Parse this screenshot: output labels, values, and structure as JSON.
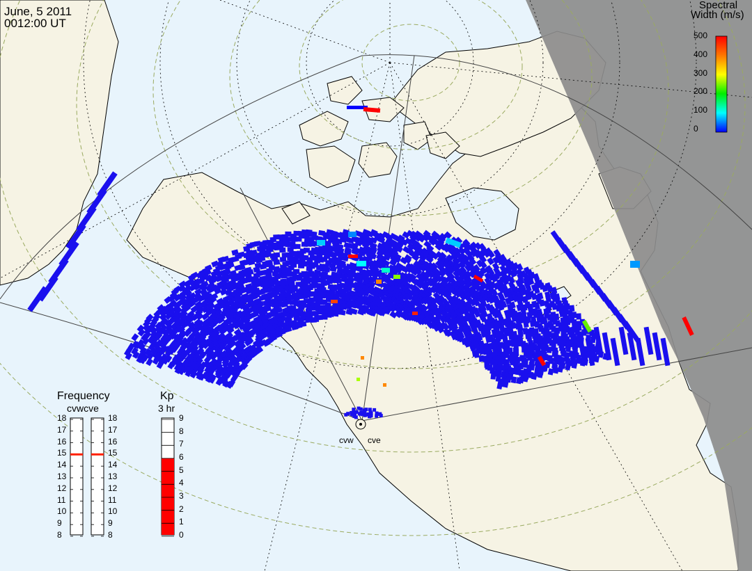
{
  "header": {
    "date": "June, 5 2011",
    "time": "0012:00 UT"
  },
  "colorbar": {
    "title_line1": "Spectral",
    "title_line2": "Width (m/s)",
    "ticks": [
      "500",
      "400",
      "300",
      "200",
      "100",
      "0"
    ],
    "colors": [
      "#ff0000",
      "#ff7700",
      "#ffff00",
      "#00ee00",
      "#00ffff",
      "#0000ff"
    ]
  },
  "stations": {
    "west_label": "cvw",
    "east_label": "cve"
  },
  "frequency_panel": {
    "title": "Frequency",
    "subtitle": "cvwcve",
    "levels": [
      "18",
      "17",
      "16",
      "15",
      "14",
      "13",
      "12",
      "11",
      "10",
      "9",
      "8"
    ],
    "cvw_frequency": 15,
    "cve_frequency": 15,
    "marker_color": "#ff2200"
  },
  "kp_panel": {
    "title": "Kp",
    "subtitle": "3 hr",
    "levels": [
      "9",
      "8",
      "7",
      "6",
      "5",
      "4",
      "3",
      "2",
      "1",
      "0"
    ],
    "kp_value": 6,
    "fill_color": "#ff0000"
  },
  "map": {
    "ocean_color": "#e8f4fc",
    "land_color": "#f6f3e4",
    "night_color": "#8c8c8c"
  }
}
